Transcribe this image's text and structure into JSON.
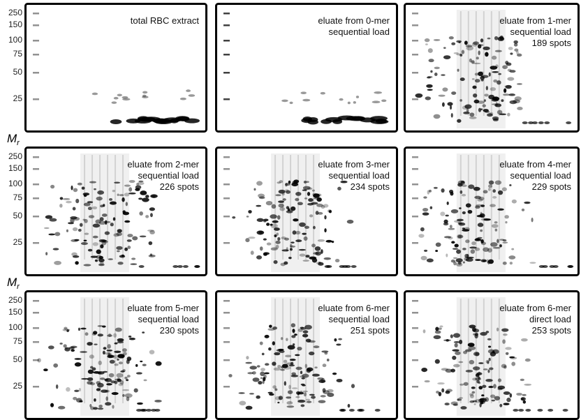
{
  "rows": [
    {
      "ticks": [
        "250",
        "150",
        "100",
        "75",
        "50",
        "25"
      ],
      "panels": [
        {
          "lines": [
            "total RBC extract"
          ]
        },
        {
          "lines": [
            "eluate from 0-mer",
            "sequential load"
          ]
        },
        {
          "lines": [
            "eluate from 1-mer",
            "sequential load",
            "189 spots"
          ]
        }
      ]
    },
    {
      "axis_label": "M",
      "axis_label_sub": "r",
      "ticks": [
        "250",
        "150",
        "100",
        "75",
        "50",
        "25"
      ],
      "panels": [
        {
          "lines": [
            "eluate from 2-mer",
            "sequential load",
            "226 spots"
          ]
        },
        {
          "lines": [
            "eluate from 3-mer",
            "sequential load",
            "234 spots"
          ]
        },
        {
          "lines": [
            "eluate from 4-mer",
            "sequential load",
            "229 spots"
          ]
        }
      ]
    },
    {
      "axis_label": "M",
      "axis_label_sub": "r",
      "ticks": [
        "250",
        "150",
        "100",
        "75",
        "50",
        "25"
      ],
      "panels": [
        {
          "lines": [
            "eluate from 5-mer",
            "sequential load",
            "230 spots"
          ]
        },
        {
          "lines": [
            "eluate from 6-mer",
            "sequential load",
            "251 spots"
          ]
        },
        {
          "lines": [
            "eluate from 6-mer",
            "direct load",
            "253 spots"
          ]
        }
      ]
    }
  ]
}
